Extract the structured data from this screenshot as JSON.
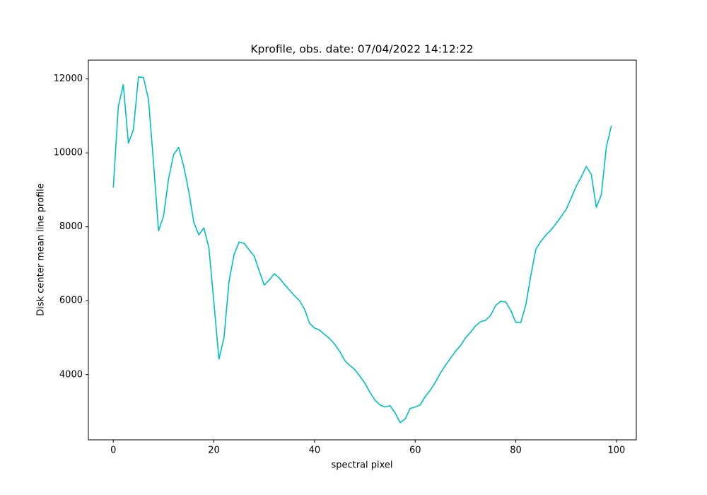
{
  "chart_data": {
    "type": "line",
    "title": "Kprofile, obs. date: 07/04/2022 14:12:22",
    "xlabel": "spectral pixel",
    "ylabel": "Disk center mean line profile",
    "x": [
      0,
      1,
      2,
      3,
      4,
      5,
      6,
      7,
      8,
      9,
      10,
      11,
      12,
      13,
      14,
      15,
      16,
      17,
      18,
      19,
      20,
      21,
      22,
      23,
      24,
      25,
      26,
      27,
      28,
      29,
      30,
      31,
      32,
      33,
      34,
      35,
      36,
      37,
      38,
      39,
      40,
      41,
      42,
      43,
      44,
      45,
      46,
      47,
      48,
      49,
      50,
      51,
      52,
      53,
      54,
      55,
      56,
      57,
      58,
      59,
      60,
      61,
      62,
      63,
      64,
      65,
      66,
      67,
      68,
      69,
      70,
      71,
      72,
      73,
      74,
      75,
      76,
      77,
      78,
      79,
      80,
      81,
      82,
      83,
      84,
      85,
      86,
      87,
      88,
      89,
      90,
      91,
      92,
      93,
      94,
      95,
      96,
      97,
      98,
      99
    ],
    "series": [
      {
        "color": "#00bfbf",
        "values": [
          9060,
          11254,
          11846,
          10260,
          10624,
          12056,
          12037,
          11445,
          9727,
          7894,
          8295,
          9307,
          9956,
          10147,
          9632,
          8963,
          8123,
          7780,
          7970,
          7436,
          5947,
          4420,
          4993,
          6520,
          7245,
          7589,
          7551,
          7379,
          7207,
          6806,
          6424,
          6558,
          6730,
          6615,
          6443,
          6291,
          6138,
          6004,
          5775,
          5394,
          5260,
          5203,
          5088,
          4974,
          4821,
          4630,
          4382,
          4248,
          4134,
          3962,
          3771,
          3523,
          3313,
          3179,
          3122,
          3160,
          2969,
          2702,
          2797,
          3084,
          3122,
          3179,
          3408,
          3580,
          3790,
          4038,
          4248,
          4439,
          4630,
          4783,
          4993,
          5145,
          5317,
          5432,
          5470,
          5604,
          5871,
          5985,
          5966,
          5737,
          5413,
          5413,
          5890,
          6692,
          7398,
          7608,
          7780,
          7913,
          8085,
          8276,
          8467,
          8773,
          9097,
          9345,
          9632,
          9422,
          8524,
          8868,
          10166,
          10739
        ]
      }
    ],
    "xlim": [
      -4.95,
      103.95
    ],
    "ylim": [
      2235,
      12510
    ],
    "xticks": [
      0,
      20,
      40,
      60,
      80,
      100
    ],
    "yticks": [
      4000,
      6000,
      8000,
      10000,
      12000
    ],
    "grid": false
  }
}
